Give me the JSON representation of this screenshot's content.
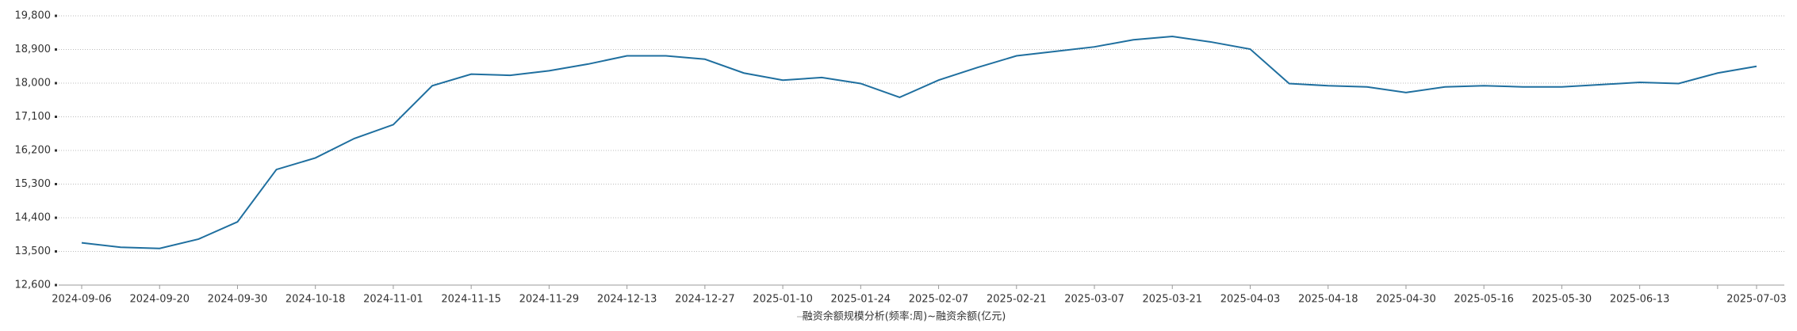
{
  "chart_data": {
    "type": "line",
    "categories": [
      "2024-09-06",
      null,
      "2024-09-20",
      null,
      "2024-09-30",
      null,
      "2024-10-18",
      null,
      "2024-11-01",
      null,
      "2024-11-15",
      null,
      "2024-11-29",
      null,
      "2024-12-13",
      null,
      "2024-12-27",
      null,
      "2025-01-10",
      null,
      "2025-01-24",
      null,
      "2025-02-07",
      null,
      "2025-02-21",
      null,
      "2025-03-07",
      null,
      "2025-03-21",
      null,
      "2025-04-03",
      null,
      "2025-04-18",
      null,
      "2025-04-30",
      null,
      "2025-05-16",
      null,
      "2025-05-30",
      null,
      "2025-06-13",
      null,
      null,
      "2025-07-03"
    ],
    "series": [
      {
        "name": "融资余额规模分析(频率:周)~融资余额(亿元)",
        "color": "#1f6f9f",
        "values": [
          13730,
          13610,
          13580,
          13830,
          14290,
          15690,
          16000,
          16520,
          16890,
          17930,
          18240,
          18210,
          18330,
          18510,
          18730,
          18730,
          18640,
          18270,
          18080,
          18150,
          17990,
          17620,
          18080,
          18420,
          18730,
          18850,
          18970,
          19160,
          19250,
          19100,
          18910,
          17990,
          17930,
          17900,
          17750,
          17900,
          17930,
          17900,
          17900,
          17960,
          18020,
          17990,
          18270,
          18450
        ]
      }
    ],
    "ylim": [
      12600,
      19800
    ],
    "yticks": [
      {
        "value": 12600,
        "label": "12,600"
      },
      {
        "value": 13500,
        "label": "13,500"
      },
      {
        "value": 14400,
        "label": "14,400"
      },
      {
        "value": 15300,
        "label": "15,300"
      },
      {
        "value": 16200,
        "label": "16,200"
      },
      {
        "value": 17100,
        "label": "17,100"
      },
      {
        "value": 18000,
        "label": "18,000"
      },
      {
        "value": 18900,
        "label": "18,900"
      },
      {
        "value": 19800,
        "label": "19,800"
      }
    ],
    "grid": true
  }
}
